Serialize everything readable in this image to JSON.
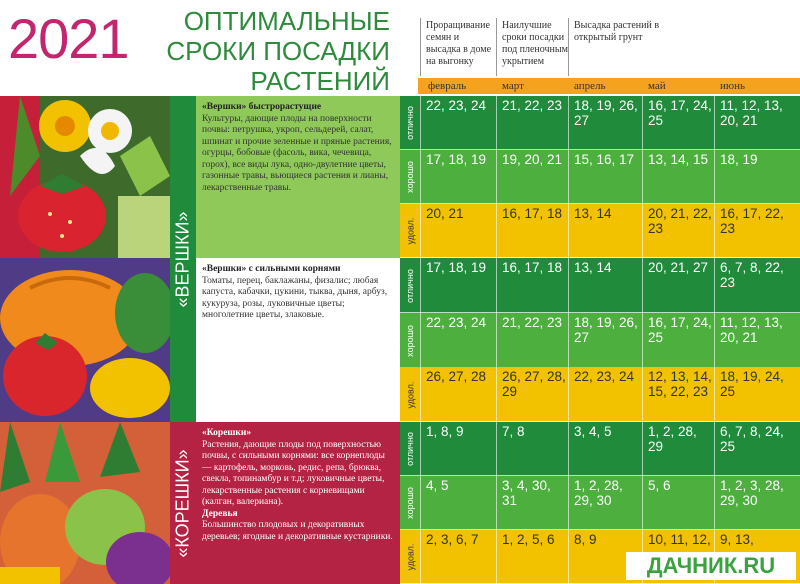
{
  "header": {
    "year": "2021",
    "title_lines": [
      "ОПТИМАЛЬНЫЕ",
      "СРОКИ ПОСАДКИ",
      "РАСТЕНИЙ"
    ],
    "col1": "Проращивание семян и высадка в доме на выгонку",
    "col2": "Наилучшие сроки посадки под пленочным укрытием",
    "col3": "Высадка растений в открытый грунт"
  },
  "months": [
    "февраль",
    "март",
    "апрель",
    "май",
    "июнь"
  ],
  "ratings": [
    "отлично",
    "хорошо",
    "удовл."
  ],
  "categories": [
    {
      "band": "«ВЕРШКИ»",
      "band_color": "#1f8b3b"
    },
    {
      "band": "«КОРЕШКИ»",
      "band_color": "#b52344"
    }
  ],
  "groups": [
    {
      "heading": "«Вершки» быстрорастущие",
      "text": "Культуры, дающие плоды на поверхности почвы: петрушка, укроп, сельдерей, салат, шпинат и прочие зеленные и пряные растения, огурцы, бобовые (фасоль, вика, чечевица, горох), все виды лука, одно-двулетние цветы, газонные травы, вьющиеся растения и лианы, лекарственные травы.",
      "rows": [
        [
          "22, 23, 24",
          "21, 22, 23",
          "18, 19, 26, 27",
          "16, 17, 24, 25",
          "11, 12, 13, 20, 21"
        ],
        [
          "17, 18, 19",
          "19, 20, 21",
          "15, 16, 17",
          "13, 14, 15",
          "18, 19"
        ],
        [
          "20, 21",
          "16, 17, 18",
          "13, 14",
          "20, 21, 22, 23",
          "16, 17, 22, 23"
        ]
      ]
    },
    {
      "heading": "«Вершки» с сильными корнями",
      "text": "Томаты, перец, баклажаны, физалис; любая капуста, кабачки, цукини, тыква, дыня, арбуз, кукуруза, розы, луковичные цветы; многолетние цветы, злаковые.",
      "rows": [
        [
          "17, 18, 19",
          "16, 17, 18",
          "13, 14",
          "20, 21, 27",
          "6, 7, 8, 22, 23"
        ],
        [
          "22, 23, 24",
          "21, 22, 23",
          "18, 19, 26, 27",
          "16, 17, 24, 25",
          "11, 12, 13, 20, 21"
        ],
        [
          "26, 27, 28",
          "26, 27, 28, 29",
          "22, 23, 24",
          "12, 13, 14, 15, 22, 23",
          "18, 19, 24, 25"
        ]
      ]
    },
    {
      "heading": "«Корешки»",
      "text": "Растения, дающие плоды под поверхностью почвы, с сильными корнями: все корнеплоды — картофель, морковь, редис, репа, брюква, свекла, топинамбур и т.д; луковичные цветы, лекарственные растения с корневищами (калган, валериана).",
      "heading2": "Деревья",
      "text2": "Большинство плодовых и декоративных деревьев; ягодные и декоративные кустарники.",
      "rows": [
        [
          "1, 8, 9",
          "7, 8",
          "3, 4, 5",
          "1, 2, 28, 29",
          "6, 7, 8, 24, 25"
        ],
        [
          "4, 5",
          "3, 4, 30, 31",
          "1, 2, 28, 29, 30",
          "5, 6",
          "1, 2, 3, 28, 29, 30"
        ],
        [
          "2, 3, 6, 7",
          "1, 2, 5, 6",
          "8, 9",
          "10, 11, 12,",
          "9, 13,"
        ]
      ]
    }
  ],
  "colors": {
    "excellent": "#1f8b3b",
    "good": "#4caf3e",
    "fair": "#f2c200",
    "accent_magenta": "#c2266f",
    "title_green": "#2e8a3c",
    "orange": "#f5a21e"
  },
  "logo": "ДАЧНИК.RU"
}
